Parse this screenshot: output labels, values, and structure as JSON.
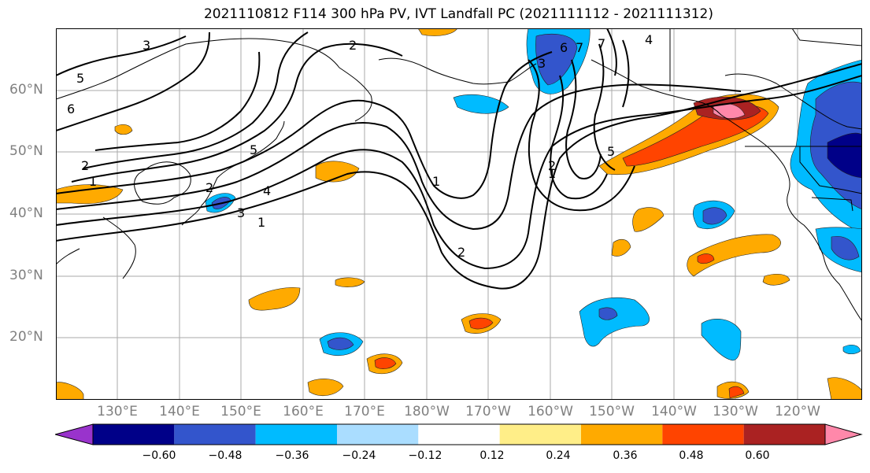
{
  "title": "2021110812 F114 300 hPa PV, IVT Landfall PC (2021111112 - 2021111312)",
  "lat_labels": [
    "60°N",
    "50°N",
    "40°N",
    "30°N",
    "20°N"
  ],
  "lon_labels": [
    "130°E",
    "140°E",
    "150°E",
    "160°E",
    "170°E",
    "180°W",
    "170°W",
    "160°W",
    "150°W",
    "140°W",
    "130°W",
    "120°W"
  ],
  "contour_labels": [
    "3",
    "5",
    "6",
    "2",
    "1",
    "2",
    "5",
    "4",
    "3",
    "1",
    "2",
    "2",
    "1",
    "1",
    "2",
    "3",
    "6",
    "7",
    "4",
    "5",
    "7"
  ],
  "colorbar": {
    "colors": [
      "#9933cc",
      "#000088",
      "#3355cc",
      "#00bbff",
      "#aaddff",
      "#ffffff",
      "#ffee88",
      "#ffaa00",
      "#ff4400",
      "#aa2222",
      "#ff88aa"
    ],
    "ticks": [
      "−0.60",
      "−0.48",
      "−0.36",
      "−0.24",
      "−0.12",
      "0.12",
      "0.24",
      "0.36",
      "0.48",
      "0.60"
    ]
  }
}
